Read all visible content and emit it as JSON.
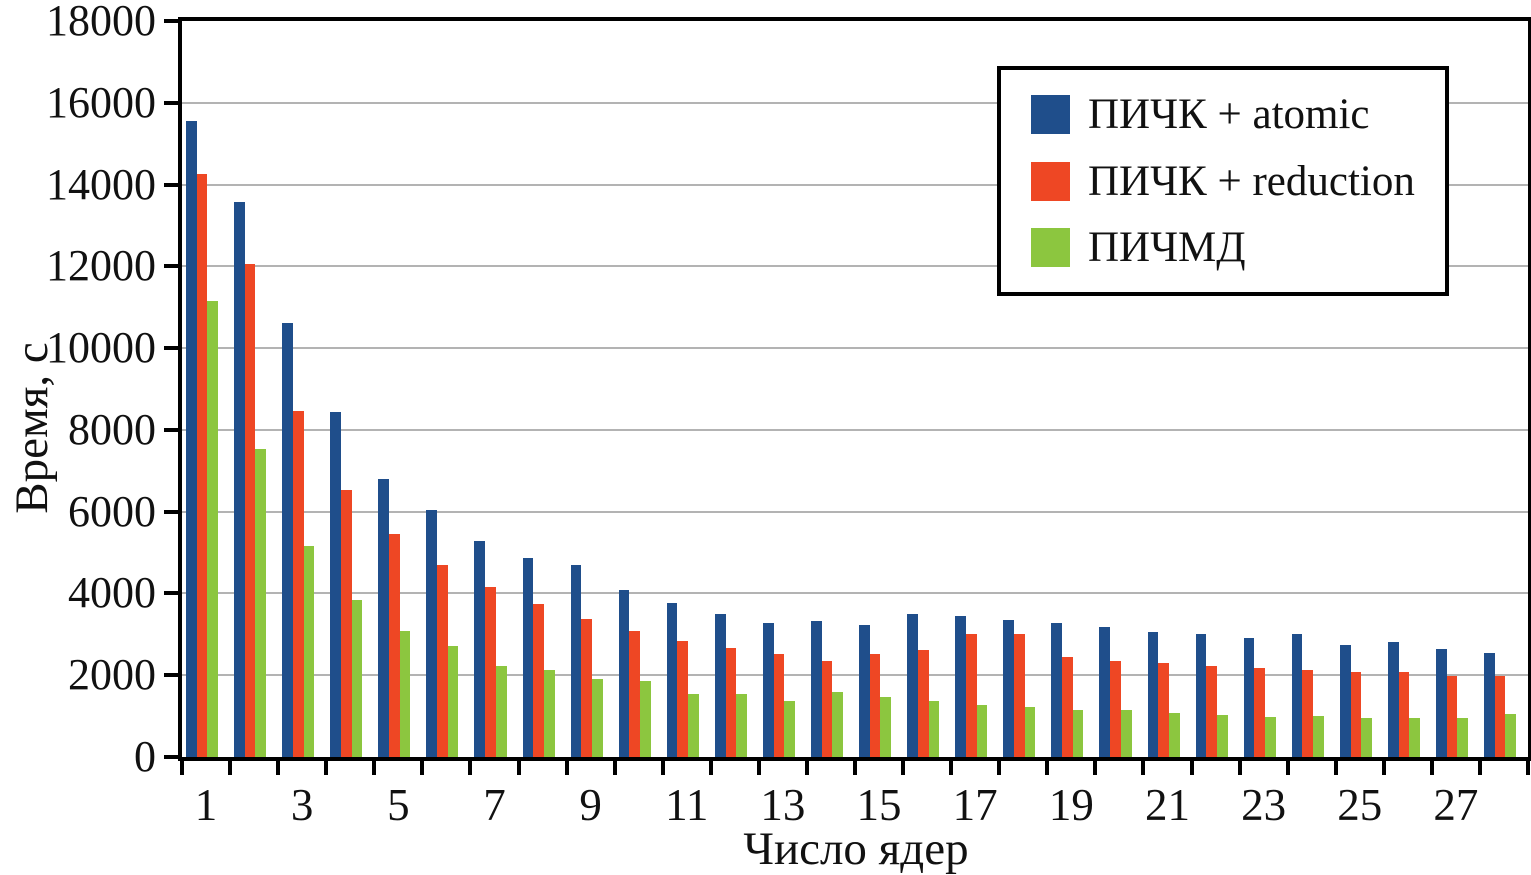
{
  "colors": {
    "background": "#ffffff",
    "frame": "#000000",
    "gridline": "#b3b3b3",
    "text": "#111111"
  },
  "chart_data": {
    "type": "bar",
    "title": "",
    "xlabel": "Число ядер",
    "ylabel": "Время, с",
    "categories": [
      1,
      2,
      3,
      4,
      5,
      6,
      7,
      8,
      9,
      10,
      11,
      12,
      13,
      14,
      15,
      16,
      17,
      18,
      19,
      20,
      21,
      22,
      23,
      24,
      25,
      26,
      27,
      28
    ],
    "x_labeled_ticks": [
      1,
      3,
      5,
      7,
      9,
      11,
      13,
      15,
      17,
      19,
      21,
      23,
      25,
      27
    ],
    "y_ticks": [
      0,
      2000,
      4000,
      6000,
      8000,
      10000,
      12000,
      14000,
      16000,
      18000
    ],
    "ylim": [
      0,
      18000
    ],
    "grid": "horizontal",
    "legend_position": "top-right-inside",
    "series": [
      {
        "name": "ПИЧК + atomic",
        "color": "#1f4e8b",
        "values": [
          15550,
          13570,
          10620,
          8450,
          6800,
          6040,
          5290,
          4870,
          4700,
          4080,
          3770,
          3500,
          3270,
          3320,
          3230,
          3490,
          3440,
          3350,
          3270,
          3170,
          3050,
          3000,
          2900,
          3000,
          2740,
          2820,
          2630,
          2550
        ]
      },
      {
        "name": "ПИЧК + reduction",
        "color": "#ee4724",
        "values": [
          14270,
          12060,
          8460,
          6520,
          5450,
          4700,
          4160,
          3750,
          3370,
          3090,
          2830,
          2670,
          2510,
          2360,
          2510,
          2620,
          3000,
          3000,
          2450,
          2350,
          2290,
          2230,
          2170,
          2130,
          2080,
          2080,
          1970,
          1970
        ]
      },
      {
        "name": "ПИЧМД",
        "color": "#8cc63f",
        "values": [
          11160,
          7530,
          5170,
          3850,
          3080,
          2710,
          2230,
          2130,
          1920,
          1860,
          1550,
          1540,
          1370,
          1580,
          1470,
          1370,
          1260,
          1220,
          1160,
          1140,
          1080,
          1030,
          990,
          1000,
          950,
          950,
          950,
          1040
        ]
      }
    ]
  }
}
